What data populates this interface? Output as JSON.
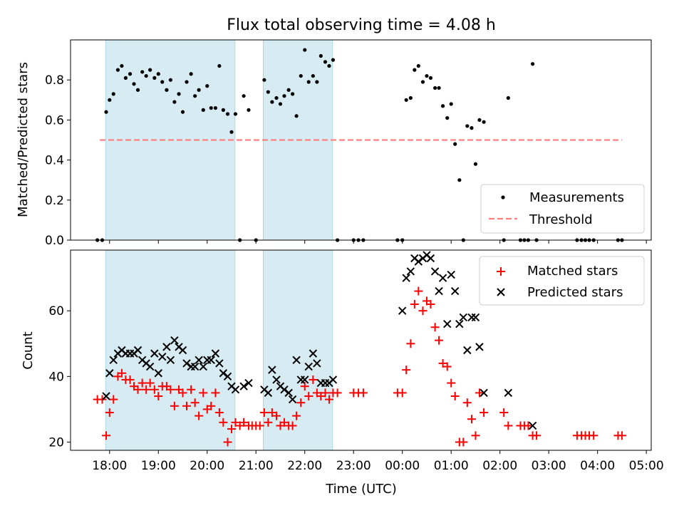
{
  "chart_data": [
    {
      "type": "scatter",
      "title": "Flux total observing time = 4.08 h",
      "xlabel": "",
      "ylabel": "Matched/Predicted stars",
      "xlim_hours": [
        17.2,
        29.1
      ],
      "ylim": [
        0,
        1.0
      ],
      "yticks": [
        0.0,
        0.2,
        0.4,
        0.6,
        0.8
      ],
      "ytick_labels": [
        "0.0",
        "0.2",
        "0.4",
        "0.6",
        "0.8"
      ],
      "legend_position": "bottom-right",
      "shaded_intervals_hours": [
        [
          17.92,
          20.57
        ],
        [
          21.15,
          22.57
        ]
      ],
      "shade_color": "#add8e6",
      "series": [
        {
          "name": "Measurements",
          "color": "#000000",
          "marker": "dot",
          "x": [
            17.75,
            17.85,
            17.93,
            18.0,
            18.08,
            18.17,
            18.25,
            18.33,
            18.42,
            18.5,
            18.58,
            18.67,
            18.75,
            18.83,
            18.92,
            19.0,
            19.08,
            19.17,
            19.25,
            19.33,
            19.42,
            19.5,
            19.58,
            19.67,
            19.75,
            19.83,
            19.92,
            20.0,
            20.08,
            20.17,
            20.25,
            20.33,
            20.42,
            20.5,
            20.58,
            20.67,
            20.75,
            20.85,
            21.0,
            21.17,
            21.25,
            21.33,
            21.42,
            21.5,
            21.58,
            21.67,
            21.75,
            21.83,
            21.92,
            22.0,
            22.08,
            22.17,
            22.25,
            22.33,
            22.42,
            22.5,
            22.58,
            22.67,
            23.0,
            23.1,
            23.2,
            23.9,
            24.0,
            24.08,
            24.17,
            24.25,
            24.33,
            24.42,
            24.5,
            24.58,
            24.67,
            24.75,
            24.83,
            24.92,
            25.0,
            25.08,
            25.17,
            25.25,
            25.33,
            25.42,
            25.5,
            25.58,
            25.67,
            26.08,
            26.17,
            26.42,
            26.5,
            26.58,
            26.67,
            26.75,
            27.58,
            27.67,
            27.75,
            27.83,
            27.92,
            28.42,
            28.5
          ],
          "y": [
            0.0,
            0.0,
            0.64,
            0.7,
            0.73,
            0.85,
            0.87,
            0.81,
            0.83,
            0.78,
            0.75,
            0.84,
            0.82,
            0.85,
            0.81,
            0.83,
            0.79,
            0.75,
            0.8,
            0.69,
            0.73,
            0.64,
            0.79,
            0.83,
            0.72,
            0.75,
            0.65,
            0.77,
            0.66,
            0.66,
            0.87,
            0.65,
            0.63,
            0.54,
            0.63,
            0.0,
            0.72,
            0.65,
            0.0,
            0.8,
            0.74,
            0.69,
            0.71,
            0.68,
            0.72,
            0.75,
            0.73,
            0.62,
            0.82,
            0.95,
            0.79,
            0.82,
            0.79,
            0.92,
            0.89,
            0.87,
            0.9,
            0.0,
            0.0,
            0.0,
            0.0,
            0.0,
            0.0,
            0.7,
            0.71,
            0.85,
            0.87,
            0.79,
            0.82,
            0.81,
            0.76,
            0.76,
            0.67,
            0.61,
            0.68,
            0.48,
            0.3,
            0.0,
            0.57,
            0.56,
            0.38,
            0.6,
            0.59,
            0.0,
            0.71,
            0.0,
            0.0,
            0.0,
            0.88,
            0.0,
            0.0,
            0.0,
            0.0,
            0.0,
            0.0,
            0.0,
            0.0
          ]
        },
        {
          "name": "Threshold",
          "color": "#ff8080",
          "style": "dashed",
          "x": [
            17.8,
            28.5
          ],
          "y": [
            0.5,
            0.5
          ]
        }
      ]
    },
    {
      "type": "scatter",
      "title": "",
      "xlabel": "Time (UTC)",
      "ylabel": "Count",
      "xlim_hours": [
        17.2,
        29.1
      ],
      "ylim": [
        17.5,
        78.5
      ],
      "yticks": [
        20,
        40,
        60
      ],
      "ytick_labels": [
        "20",
        "40",
        "60"
      ],
      "xticks_hours": [
        18,
        19,
        20,
        21,
        22,
        23,
        24,
        25,
        26,
        27,
        28,
        29
      ],
      "xtick_labels": [
        "18:00",
        "19:00",
        "20:00",
        "21:00",
        "22:00",
        "23:00",
        "00:00",
        "01:00",
        "02:00",
        "03:00",
        "04:00",
        "05:00"
      ],
      "legend_position": "top-right",
      "shaded_intervals_hours": [
        [
          17.92,
          20.57
        ],
        [
          21.15,
          22.57
        ]
      ],
      "shade_color": "#add8e6",
      "series": [
        {
          "name": "Matched stars",
          "color": "#ff0000",
          "marker": "plus",
          "x": [
            17.75,
            17.85,
            17.93,
            18.0,
            18.08,
            18.17,
            18.25,
            18.33,
            18.42,
            18.5,
            18.58,
            18.67,
            18.75,
            18.83,
            18.92,
            19.0,
            19.08,
            19.17,
            19.25,
            19.33,
            19.42,
            19.5,
            19.58,
            19.67,
            19.75,
            19.83,
            19.92,
            20.0,
            20.08,
            20.17,
            20.25,
            20.33,
            20.42,
            20.5,
            20.58,
            20.67,
            20.75,
            20.85,
            20.92,
            21.0,
            21.08,
            21.17,
            21.25,
            21.33,
            21.42,
            21.5,
            21.58,
            21.67,
            21.75,
            21.83,
            21.92,
            22.0,
            22.08,
            22.17,
            22.25,
            22.33,
            22.42,
            22.5,
            22.58,
            22.67,
            23.0,
            23.1,
            23.2,
            23.9,
            24.0,
            24.08,
            24.17,
            24.25,
            24.33,
            24.42,
            24.5,
            24.58,
            24.67,
            24.75,
            24.83,
            24.92,
            25.0,
            25.08,
            25.17,
            25.25,
            25.33,
            25.42,
            25.5,
            25.58,
            25.67,
            26.08,
            26.17,
            26.42,
            26.5,
            26.58,
            26.67,
            26.75,
            27.58,
            27.67,
            27.75,
            27.83,
            27.92,
            28.42,
            28.5
          ],
          "y": [
            33,
            33,
            22,
            29,
            33,
            40,
            41,
            39,
            39,
            37,
            36,
            38,
            36,
            38,
            36,
            34,
            37,
            37,
            36,
            31,
            36,
            35,
            31,
            36,
            32,
            28,
            35,
            30,
            31,
            35,
            29,
            26,
            20,
            24,
            26,
            25,
            26,
            25,
            25,
            25,
            25,
            29,
            26,
            29,
            28,
            25,
            26,
            25,
            25,
            28,
            32,
            37,
            34,
            39,
            35,
            34,
            35,
            33,
            35,
            35,
            35,
            35,
            35,
            35,
            35,
            42,
            50,
            62,
            66,
            60,
            63,
            62,
            55,
            51,
            44,
            43,
            38,
            34,
            20,
            20,
            32,
            27,
            22,
            35,
            29,
            29,
            25,
            25,
            25,
            25,
            22,
            22,
            22,
            22,
            22,
            22,
            22,
            22,
            22
          ]
        },
        {
          "name": "Predicted stars",
          "color": "#000000",
          "marker": "x",
          "x": [
            17.93,
            18.0,
            18.08,
            18.17,
            18.25,
            18.33,
            18.42,
            18.5,
            18.58,
            18.67,
            18.75,
            18.83,
            18.92,
            19.0,
            19.08,
            19.17,
            19.25,
            19.33,
            19.42,
            19.5,
            19.58,
            19.67,
            19.75,
            19.83,
            19.92,
            20.0,
            20.08,
            20.17,
            20.25,
            20.33,
            20.42,
            20.5,
            20.58,
            20.75,
            20.85,
            21.17,
            21.25,
            21.33,
            21.42,
            21.5,
            21.58,
            21.67,
            21.75,
            21.83,
            21.92,
            22.0,
            22.08,
            22.17,
            22.25,
            22.33,
            22.42,
            22.5,
            22.58,
            24.0,
            24.08,
            24.17,
            24.25,
            24.33,
            24.42,
            24.5,
            24.58,
            24.67,
            24.75,
            24.83,
            24.92,
            25.0,
            25.08,
            25.17,
            25.25,
            25.33,
            25.42,
            25.5,
            25.58,
            25.67,
            26.17,
            26.67
          ],
          "y": [
            34,
            41,
            45,
            47,
            48,
            47,
            47,
            47,
            48,
            45,
            44,
            43,
            47,
            41,
            46,
            49,
            45,
            51,
            49,
            48,
            44,
            43,
            43,
            45,
            43,
            45,
            45,
            47,
            44,
            41,
            40,
            37,
            36,
            37,
            38,
            36,
            35,
            42,
            39,
            37,
            36,
            35,
            33,
            45,
            39,
            39,
            43,
            47,
            44,
            38,
            38,
            38,
            39,
            60,
            70,
            72,
            76,
            75,
            76,
            77,
            76,
            72,
            66,
            70,
            56,
            71,
            66,
            56,
            58,
            48,
            58,
            58,
            49,
            35,
            35,
            25
          ]
        }
      ]
    }
  ]
}
